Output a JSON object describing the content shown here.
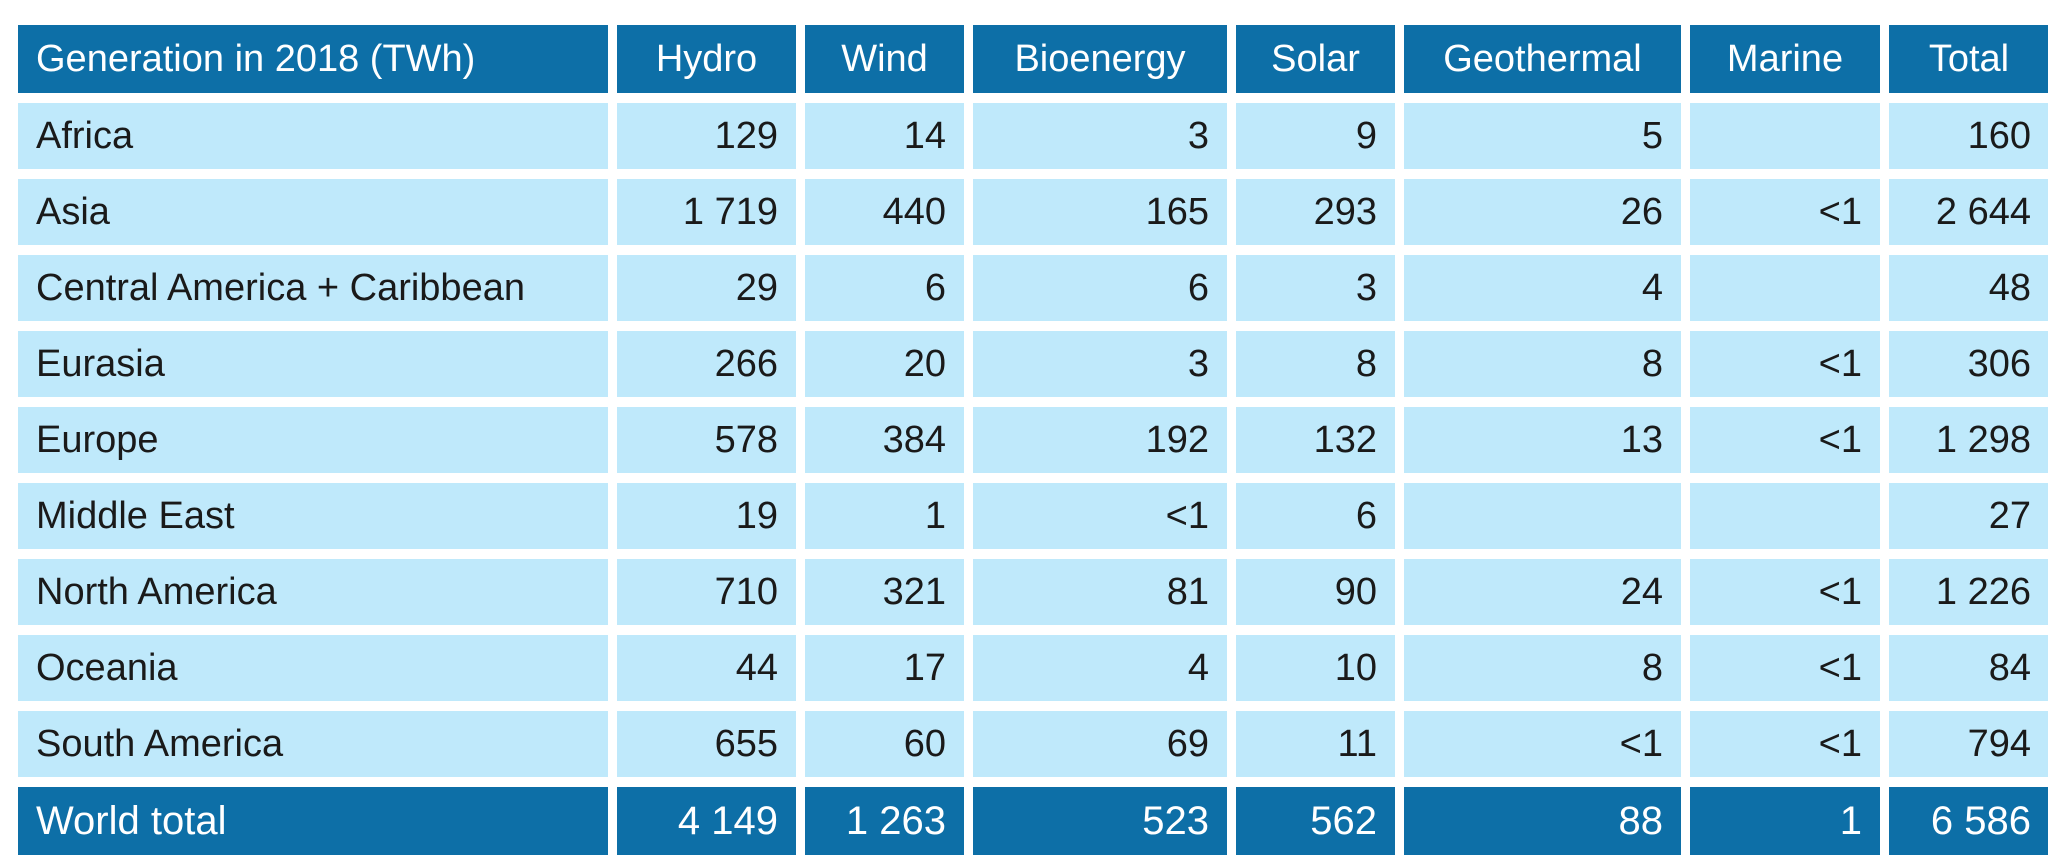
{
  "table": {
    "header": {
      "corner": "Generation in 2018 (TWh)",
      "columns": [
        "Hydro",
        "Wind",
        "Bioenergy",
        "Solar",
        "Geothermal",
        "Marine",
        "Total"
      ]
    },
    "rows": [
      {
        "region": "Africa",
        "values": [
          "129",
          "14",
          "3",
          "9",
          "5",
          "",
          "160"
        ]
      },
      {
        "region": "Asia",
        "values": [
          "1 719",
          "440",
          "165",
          "293",
          "26",
          "<1",
          "2 644"
        ]
      },
      {
        "region": "Central America + Caribbean",
        "values": [
          "29",
          "6",
          "6",
          "3",
          "4",
          "",
          "48"
        ]
      },
      {
        "region": "Eurasia",
        "values": [
          "266",
          "20",
          "3",
          "8",
          "8",
          "<1",
          "306"
        ]
      },
      {
        "region": "Europe",
        "values": [
          "578",
          "384",
          "192",
          "132",
          "13",
          "<1",
          "1 298"
        ]
      },
      {
        "region": "Middle East",
        "values": [
          "19",
          "1",
          "<1",
          "6",
          "",
          "",
          "27"
        ]
      },
      {
        "region": "North America",
        "values": [
          "710",
          "321",
          "81",
          "90",
          "24",
          "<1",
          "1 226"
        ]
      },
      {
        "region": "Oceania",
        "values": [
          "44",
          "17",
          "4",
          "10",
          "8",
          "<1",
          "84"
        ]
      },
      {
        "region": "South America",
        "values": [
          "655",
          "60",
          "69",
          "11",
          "<1",
          "<1",
          "794"
        ]
      }
    ],
    "footer": {
      "region": "World total",
      "values": [
        "4 149",
        "1 263",
        "523",
        "562",
        "88",
        "1",
        "6 586"
      ]
    }
  },
  "colors": {
    "header_bg": "#0d6fa7",
    "row_bg": "#bfe9fb",
    "header_text": "#ffffff",
    "body_text": "#1a1a1a"
  }
}
